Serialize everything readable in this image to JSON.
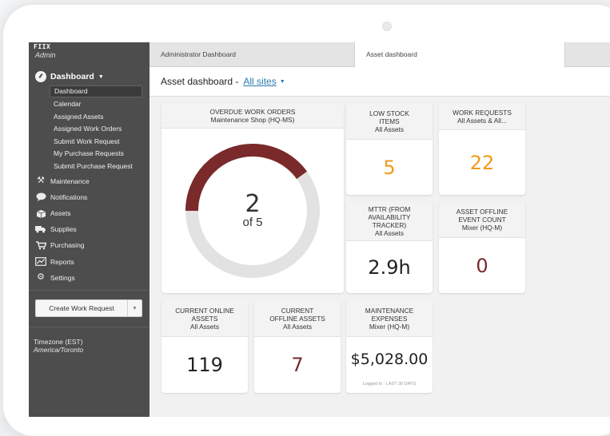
{
  "sidebar": {
    "app_name": "FIIX",
    "role": "Admin",
    "dashboard_label": "Dashboard",
    "sub_items": [
      "Dashboard",
      "Calendar",
      "Assigned Assets",
      "Assigned Work Orders",
      "Submit Work Request",
      "My Purchase Requests",
      "Submit Purchase Request"
    ],
    "items": [
      {
        "label": "Maintenance",
        "icon": "wrench-icon"
      },
      {
        "label": "Notifications",
        "icon": "speech-bubble-icon"
      },
      {
        "label": "Assets",
        "icon": "box-icon"
      },
      {
        "label": "Supplies",
        "icon": "truck-icon"
      },
      {
        "label": "Purchasing",
        "icon": "cart-icon"
      },
      {
        "label": "Reports",
        "icon": "chart-icon"
      },
      {
        "label": "Settings",
        "icon": "gear-icon"
      }
    ],
    "create_button": "Create Work Request",
    "timezone_label": "Timezone (EST)",
    "timezone_value": "America/Toronto"
  },
  "tabs": [
    "Administrator Dashboard",
    "Asset dashboard"
  ],
  "title": {
    "text": "Asset dashboard -",
    "link": "All sites"
  },
  "cards": {
    "overdue": {
      "title": "OVERDUE WORK ORDERS",
      "subtitle": "Maintenance Shop (HQ-MS)",
      "value": "2",
      "of": "of 5",
      "fraction": 0.4,
      "color": "#7a2a2a"
    },
    "low_stock": {
      "title_1": "LOW STOCK",
      "title_2": "ITEMS",
      "subtitle": "All Assets",
      "value": "5",
      "color": "#f29a1b"
    },
    "work_requests": {
      "title": "WORK REQUESTS",
      "subtitle": "All Assets & All...",
      "value": "22",
      "color": "#f29a1b"
    },
    "mttr": {
      "title_1": "MTTR (FROM",
      "title_2": "AVAILABILITY",
      "title_3": "TRACKER)",
      "subtitle": "All Assets",
      "value": "2.9h",
      "color": "#222222"
    },
    "offline_events": {
      "title_1": "ASSET OFFLINE",
      "title_2": "EVENT COUNT",
      "subtitle": "Mixer (HQ-M)",
      "value": "0",
      "color": "#7a2a2a"
    },
    "online_assets": {
      "title_1": "CURRENT ONLINE",
      "title_2": "ASSETS",
      "subtitle": "All Assets",
      "value": "119",
      "color": "#222222"
    },
    "offline_assets": {
      "title_1": "CURRENT",
      "title_2": "OFFLINE ASSETS",
      "subtitle": "All Assets",
      "value": "7",
      "color": "#7a2a2a"
    },
    "expenses": {
      "title_1": "MAINTENANCE",
      "title_2": "EXPENSES",
      "subtitle": "Mixer (HQ-M)",
      "value": "$5,028.00",
      "footer": "Logged In : LAST 30 DAYS",
      "color": "#222222"
    }
  }
}
